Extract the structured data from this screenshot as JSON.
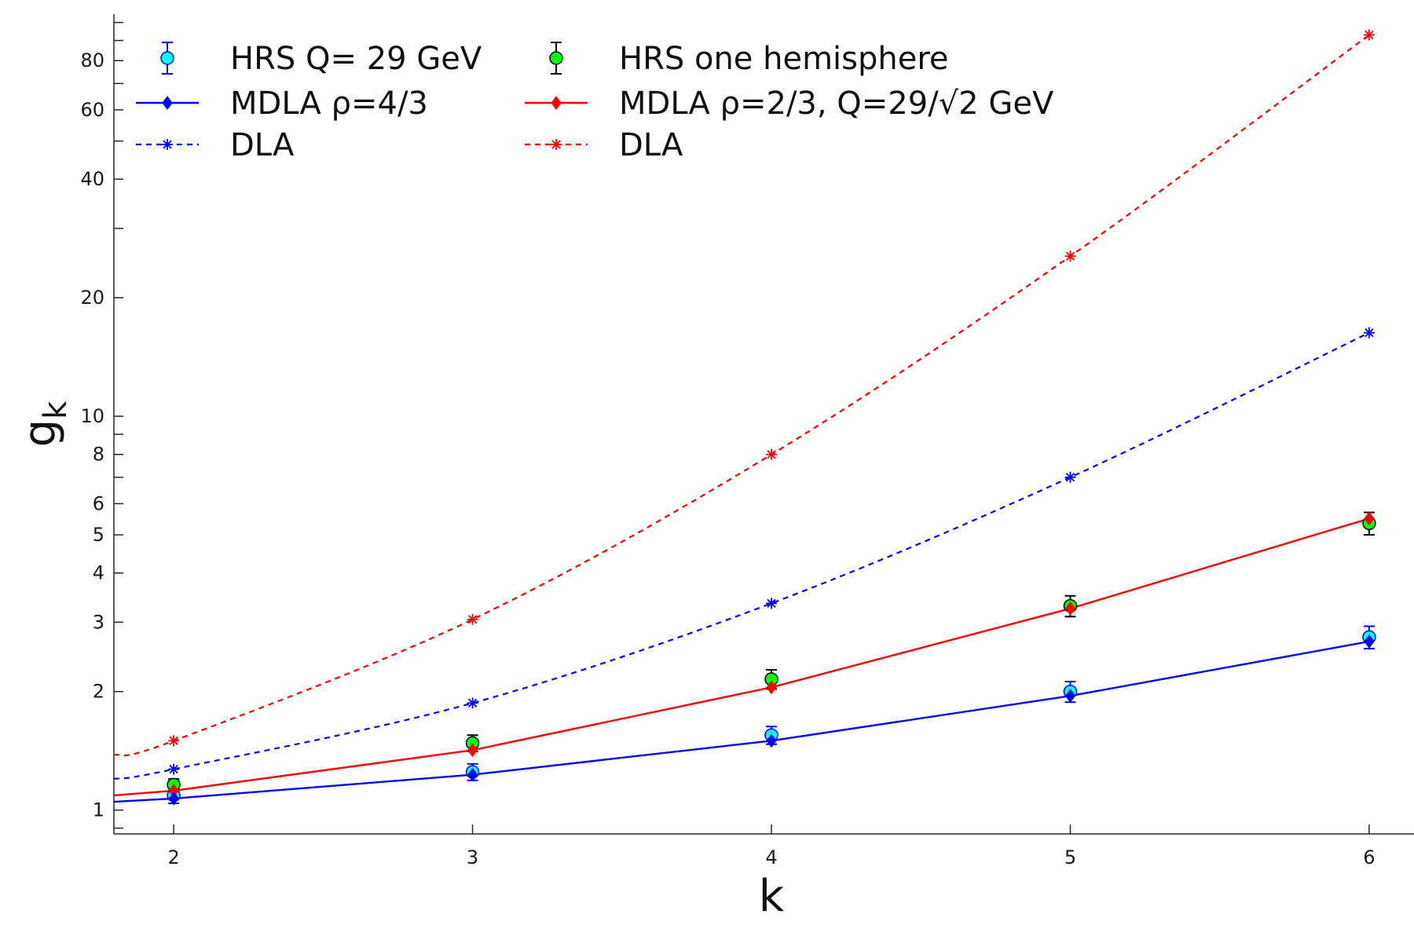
{
  "chart_data": {
    "type": "line",
    "title": "",
    "xlabel": "k",
    "ylabel_main": "g",
    "ylabel_sub": "k",
    "yscale": "log",
    "xlim": [
      1.8,
      6.15
    ],
    "ylim": [
      0.87,
      105
    ],
    "x_ticks": [
      2,
      3,
      4,
      5,
      6
    ],
    "x_tick_labels": [
      "2",
      "3",
      "4",
      "5",
      "6"
    ],
    "y_ticks": [
      1,
      2,
      3,
      4,
      5,
      6,
      8,
      10,
      20,
      40,
      60,
      80
    ],
    "y_tick_labels": [
      "1",
      "2",
      "3",
      "4",
      "5",
      "6",
      "8",
      "10",
      "20",
      "40",
      "60",
      "80"
    ],
    "y_minor_ticks": [
      0.9,
      7,
      9,
      30,
      50,
      70,
      90,
      100
    ],
    "grid": false,
    "legend_position": "top-left, two columns",
    "legend": {
      "hrs_full": "HRS Q= 29 GeV",
      "hrs_hemi": "HRS one hemisphere",
      "mdla_full": "MDLA  ρ=4/3",
      "mdla_hemi": "MDLA  ρ=2/3,   Q=29/√2 GeV",
      "dla_full": "DLA",
      "dla_hemi": "DLA"
    },
    "colors": {
      "blue": "#0000ff",
      "red": "#ff0000",
      "cyan": "#00ffff",
      "green": "#00ff00",
      "black": "#000000"
    },
    "series": [
      {
        "key": "hrs_full",
        "name": "HRS Q= 29 GeV",
        "kind": "data",
        "x": [
          2,
          3,
          4,
          5,
          6
        ],
        "y": [
          1.09,
          1.25,
          1.55,
          2.0,
          2.75
        ],
        "err": [
          0.05,
          0.06,
          0.08,
          0.12,
          0.18
        ]
      },
      {
        "key": "hrs_hemi",
        "name": "HRS one hemisphere",
        "kind": "data",
        "x": [
          2,
          3,
          4,
          5,
          6
        ],
        "y": [
          1.16,
          1.48,
          2.15,
          3.3,
          5.35
        ],
        "err": [
          0.04,
          0.07,
          0.12,
          0.2,
          0.35
        ]
      },
      {
        "key": "mdla_full",
        "name": "MDLA  ρ=4/3",
        "kind": "model",
        "x": [
          2,
          3,
          4,
          5,
          6
        ],
        "y": [
          1.07,
          1.23,
          1.5,
          1.95,
          2.68
        ],
        "line_start": [
          1.8,
          1.05
        ]
      },
      {
        "key": "mdla_hemi",
        "name": "MDLA  ρ=2/3,   Q=29/√2 GeV",
        "kind": "model",
        "x": [
          2,
          3,
          4,
          5,
          6
        ],
        "y": [
          1.12,
          1.42,
          2.05,
          3.25,
          5.5
        ],
        "line_start": [
          1.8,
          1.09
        ]
      },
      {
        "key": "dla_full",
        "name": "DLA",
        "kind": "dla",
        "x": [
          2,
          3,
          4,
          5,
          6
        ],
        "y": [
          1.27,
          1.87,
          3.35,
          7.0,
          16.3
        ],
        "line_start": [
          1.8,
          1.2
        ]
      },
      {
        "key": "dla_hemi",
        "name": "DLA",
        "kind": "dla",
        "x": [
          2,
          3,
          4,
          5,
          6
        ],
        "y": [
          1.5,
          3.05,
          8.0,
          25.5,
          93
        ],
        "line_start": [
          1.8,
          1.38
        ]
      }
    ]
  }
}
